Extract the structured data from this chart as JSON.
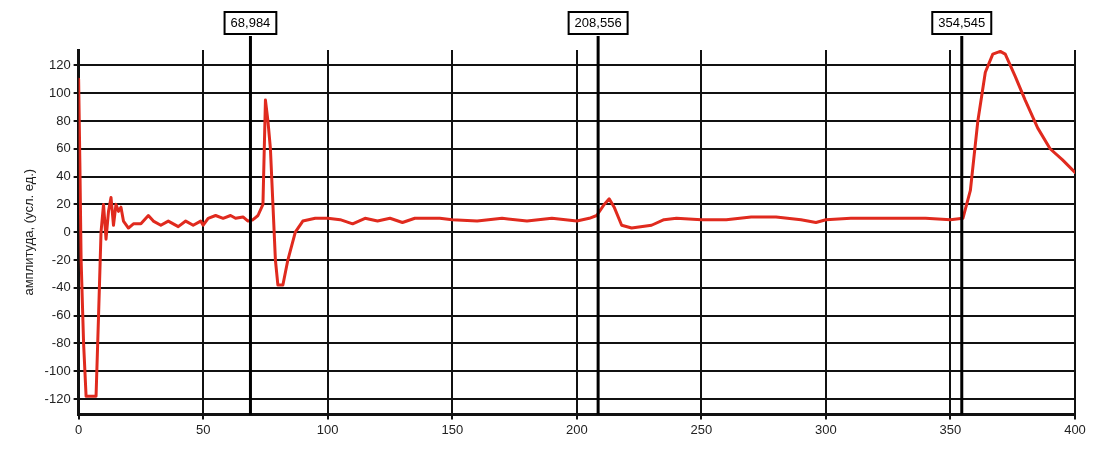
{
  "chart_data": {
    "type": "line",
    "ylabel": "амплитуда, (усл. ед.)",
    "xlim": [
      0,
      400
    ],
    "xticks": [
      0,
      50,
      100,
      150,
      200,
      250,
      300,
      350,
      400
    ],
    "ylim": [
      -131,
      131
    ],
    "yticks": [
      -120,
      -100,
      -80,
      -60,
      -40,
      -20,
      0,
      20,
      40,
      60,
      80,
      100,
      120
    ],
    "grid": true,
    "legend": false,
    "marker": "none",
    "line_style": "solid",
    "series": [
      {
        "color": "#e02a1e",
        "x": [
          0,
          0.5,
          1,
          2,
          3,
          7,
          8,
          9,
          10,
          11,
          12,
          13,
          14,
          15,
          16,
          17,
          18,
          20,
          22,
          25,
          28,
          30,
          33,
          36,
          40,
          43,
          46,
          49,
          50,
          52,
          55,
          58,
          61,
          63,
          66,
          68,
          70,
          72,
          74,
          75,
          76,
          77,
          78,
          79,
          80,
          82,
          84,
          87,
          90,
          95,
          100,
          105,
          110,
          115,
          120,
          125,
          130,
          135,
          140,
          145,
          150,
          160,
          170,
          180,
          190,
          200,
          205,
          208,
          211,
          213,
          215,
          218,
          222,
          230,
          235,
          240,
          250,
          260,
          270,
          280,
          290,
          296,
          300,
          310,
          320,
          330,
          340,
          350,
          355,
          358,
          361,
          364,
          367,
          370,
          372,
          376,
          380,
          385,
          390,
          395,
          400
        ],
        "values": [
          110,
          50,
          -20,
          -80,
          -118,
          -118,
          -60,
          0,
          20,
          -5,
          15,
          25,
          5,
          20,
          15,
          18,
          8,
          3,
          6,
          6,
          12,
          8,
          5,
          8,
          4,
          8,
          5,
          8,
          5,
          10,
          12,
          10,
          12,
          10,
          11,
          8,
          9,
          12,
          20,
          95,
          80,
          60,
          20,
          -20,
          -38,
          -38,
          -20,
          0,
          8,
          10,
          10,
          9,
          6,
          10,
          8,
          10,
          7,
          10,
          10,
          10,
          9,
          8,
          10,
          8,
          10,
          8,
          10,
          12,
          20,
          24,
          18,
          5,
          3,
          5,
          9,
          10,
          9,
          9,
          11,
          11,
          9,
          7,
          9,
          10,
          10,
          10,
          10,
          9,
          10,
          30,
          80,
          115,
          128,
          130,
          128,
          112,
          95,
          75,
          60,
          52,
          43
        ]
      }
    ],
    "ref_lines": [
      {
        "axis": "x",
        "value": 68.984,
        "label": "68,984"
      },
      {
        "axis": "x",
        "value": 208.556,
        "label": "208,556"
      },
      {
        "axis": "x",
        "value": 354.545,
        "label": "354,545"
      }
    ]
  }
}
